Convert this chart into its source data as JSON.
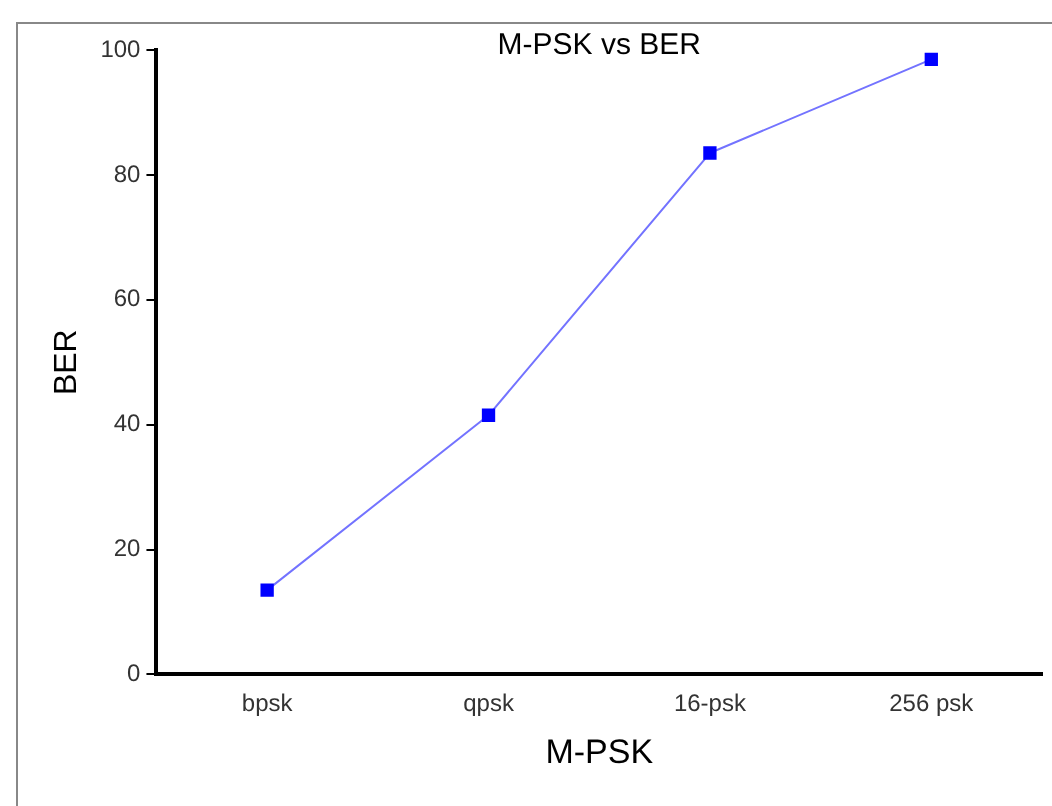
{
  "chart_data": {
    "type": "line",
    "title": "M-PSK vs BER",
    "xlabel": "M-PSK",
    "ylabel": "BER",
    "categories": [
      "bpsk",
      "qpsk",
      "16-psk",
      "256 psk"
    ],
    "series": [
      {
        "color": "#0000ff",
        "values": [
          13.5,
          41.5,
          83.5,
          98.5
        ]
      }
    ],
    "ylim": [
      0,
      100
    ],
    "yticks": [
      0,
      20,
      40,
      60,
      80,
      100
    ],
    "grid": false,
    "legend": false,
    "marker": "square",
    "line_style": "solid"
  }
}
